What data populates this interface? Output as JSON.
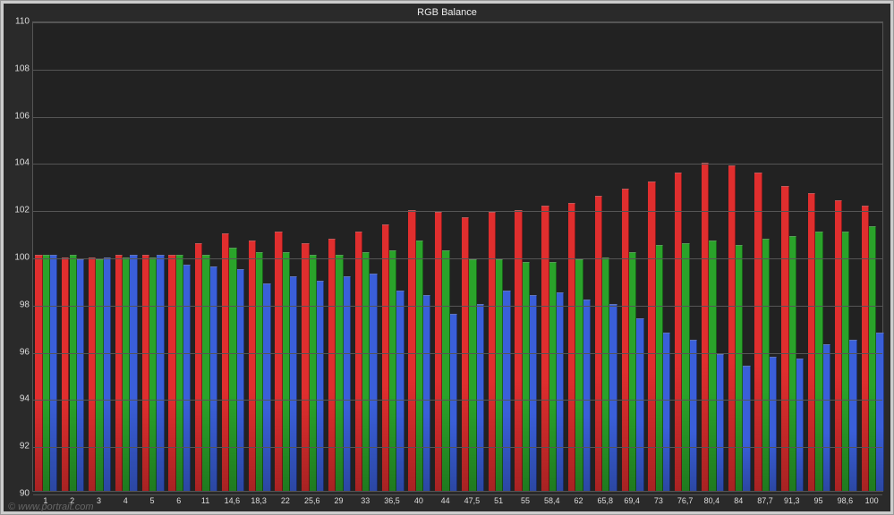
{
  "chart": {
    "type": "bar",
    "title": "RGB Balance",
    "title_fontsize": 11,
    "background_color": "#2a2a2a",
    "plot_bg_color": "#222222",
    "grid_color": "#555555",
    "text_color": "#dddddd",
    "border_color": "#555555",
    "ylim": [
      90,
      110
    ],
    "yticks": [
      90,
      92,
      94,
      96,
      98,
      100,
      102,
      104,
      106,
      108,
      110
    ],
    "series_colors": {
      "r": "#e02e2e",
      "g": "#2aa32a",
      "b": "#3a5fd9"
    },
    "bar_rel_width": 0.28,
    "categories": [
      "1",
      "2",
      "3",
      "4",
      "5",
      "6",
      "11",
      "14,6",
      "18,3",
      "22",
      "25,6",
      "29",
      "33",
      "36,5",
      "40",
      "44",
      "47,5",
      "51",
      "55",
      "58,4",
      "62",
      "65,8",
      "69,4",
      "73",
      "76,7",
      "80,4",
      "84",
      "87,7",
      "91,3",
      "95",
      "98,6",
      "100"
    ],
    "label_fontsize": 10,
    "data": {
      "r": [
        100.0,
        99.9,
        99.9,
        100.0,
        100.0,
        100.0,
        100.5,
        100.9,
        100.6,
        101.0,
        100.5,
        100.7,
        101.0,
        101.3,
        101.9,
        101.8,
        101.6,
        101.8,
        101.9,
        102.1,
        102.2,
        102.5,
        102.8,
        103.1,
        103.5,
        103.9,
        103.8,
        103.5,
        102.9,
        102.6,
        102.3,
        102.1
      ],
      "g": [
        100.0,
        100.0,
        99.8,
        99.9,
        99.9,
        100.0,
        100.0,
        100.3,
        100.1,
        100.1,
        100.0,
        100.0,
        100.1,
        100.2,
        100.6,
        100.2,
        99.8,
        99.8,
        99.7,
        99.7,
        99.8,
        99.9,
        100.1,
        100.4,
        100.5,
        100.6,
        100.4,
        100.7,
        100.8,
        101.0,
        101.0,
        101.2
      ],
      "b": [
        100.0,
        99.8,
        99.9,
        100.0,
        100.0,
        99.6,
        99.5,
        99.4,
        98.8,
        99.1,
        98.9,
        99.1,
        99.2,
        98.5,
        98.3,
        97.5,
        97.9,
        98.5,
        98.3,
        98.4,
        98.1,
        97.9,
        97.3,
        96.7,
        96.4,
        95.8,
        95.3,
        95.7,
        95.6,
        96.2,
        96.4,
        96.7
      ]
    }
  },
  "watermark": "© www.portrait.com"
}
